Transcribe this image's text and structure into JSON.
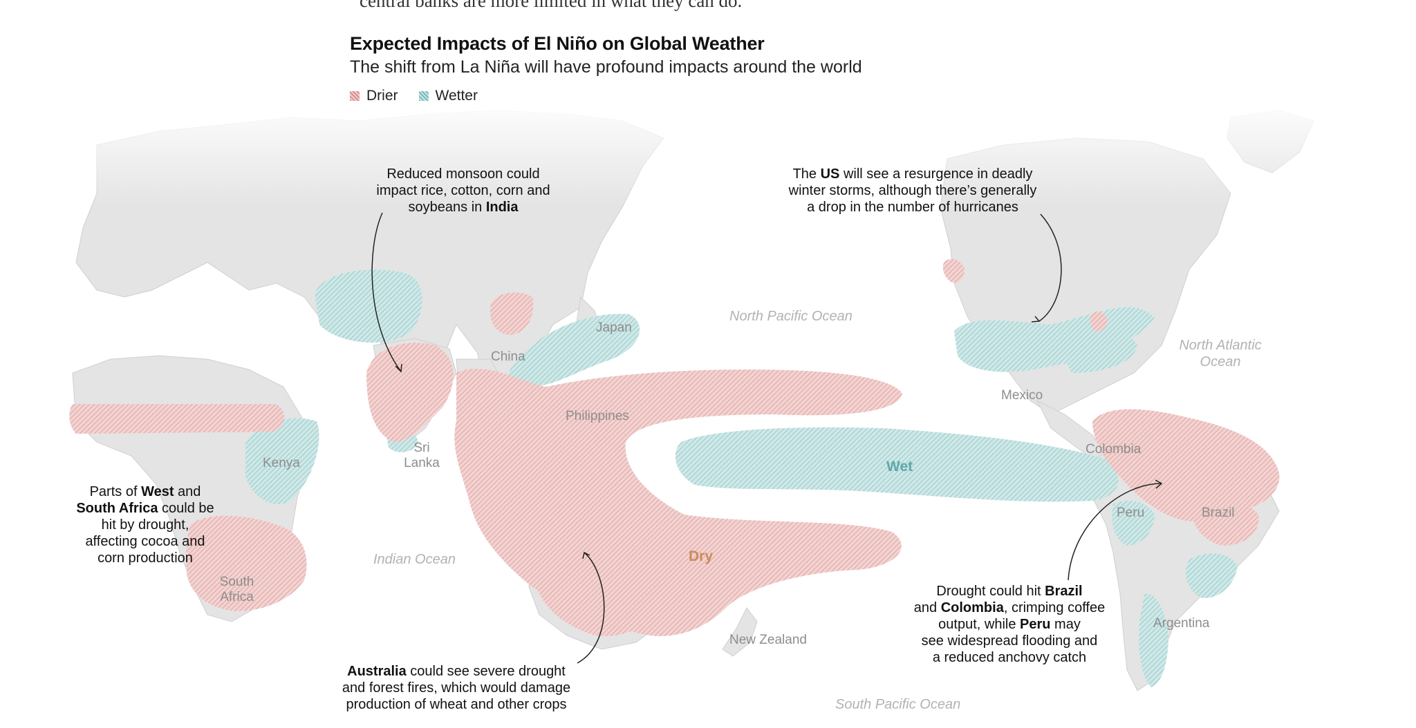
{
  "cutoff_text": "central banks are more limited in what they can do.",
  "title": "Expected Impacts of El Niño on Global Weather",
  "subtitle": "The shift from La Niña will have profound impacts around the world",
  "legend": [
    {
      "label": "Drier",
      "color": "#d9908f"
    },
    {
      "label": "Wetter",
      "color": "#78bcbc"
    }
  ],
  "colors": {
    "dry": "#d9908f",
    "wet": "#78bcbc",
    "land": "#e3e3e3",
    "text": "#111111"
  },
  "annotations": {
    "india": [
      "Reduced monsoon could",
      "impact rice, cotton, corn and",
      "soybeans in ",
      "India"
    ],
    "us": [
      "The ",
      "US",
      " will see a resurgence in deadly",
      "winter storms, although there’s generally",
      "a drop in the number of hurricanes"
    ],
    "africa": [
      "Parts of ",
      "West",
      " and",
      "South Africa",
      " could be",
      "hit by drought,",
      "affecting cocoa and",
      "corn production"
    ],
    "australia": [
      "Australia",
      " could see severe drought",
      "and forest fires, which would damage",
      "production of wheat and other crops"
    ],
    "brazil": [
      "Drought could hit ",
      "Brazil",
      "and ",
      "Colombia",
      ", crimping coffee",
      "output, while ",
      "Peru",
      " may",
      "see widespread flooding and",
      "a reduced anchovy catch"
    ]
  },
  "places": {
    "japan": "Japan",
    "china": "China",
    "philippines": "Philippines",
    "sri_lanka": [
      "Sri",
      "Lanka"
    ],
    "kenya": "Kenya",
    "south_africa": [
      "South",
      "Africa"
    ],
    "mexico": "Mexico",
    "colombia": "Colombia",
    "peru": "Peru",
    "brazil": "Brazil",
    "argentina": "Argentina",
    "new_zealand": "New Zealand"
  },
  "oceans": {
    "north_pacific": "North Pacific Ocean",
    "north_atlantic": [
      "North Atlantic",
      "Ocean"
    ],
    "indian": "Indian Ocean",
    "south_pacific": "South Pacific Ocean"
  },
  "zone_labels": {
    "wet": "Wet",
    "dry": "Dry"
  }
}
